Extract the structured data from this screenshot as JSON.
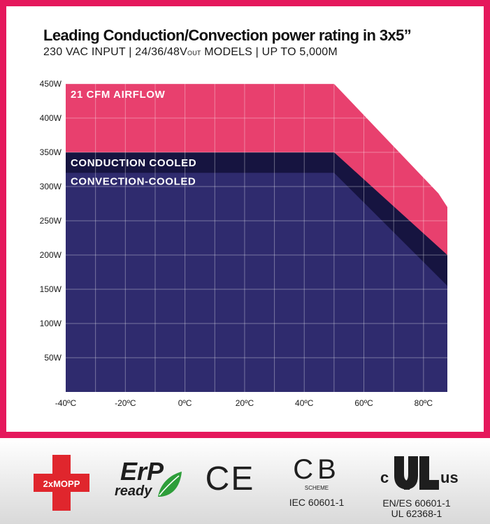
{
  "colors": {
    "frame": "#e5185c",
    "airflow": "#e8406e",
    "conduction": "#161440",
    "convection": "#2f2b6e",
    "grid": "#ffffff"
  },
  "header": {
    "title": "Leading Conduction/Convection power rating in 3x5”",
    "subtitle_pre": "230 VAC INPUT | 24/36/48V",
    "subtitle_sub": "OUT",
    "subtitle_post": " MODELS | UP TO 5,000M"
  },
  "chart_data": {
    "type": "area",
    "title": "Leading Conduction/Convection power rating in 3x5”",
    "xlabel": "",
    "ylabel": "",
    "xlim": [
      -40,
      88
    ],
    "ylim": [
      0,
      450
    ],
    "xticks": [
      -40,
      -20,
      0,
      20,
      40,
      60,
      80
    ],
    "xtick_labels": [
      "-40ºC",
      "-20ºC",
      "0ºC",
      "20ºC",
      "40ºC",
      "60ºC",
      "80ºC"
    ],
    "yticks": [
      50,
      100,
      150,
      200,
      250,
      300,
      350,
      400,
      450
    ],
    "ytick_labels": [
      "50W",
      "100W",
      "150W",
      "200W",
      "250W",
      "300W",
      "350W",
      "400W",
      "450W"
    ],
    "grid": true,
    "series": [
      {
        "name": "21 CFM AIRFLOW",
        "label": "21 CFM AIRFLOW",
        "x": [
          -40,
          50,
          85,
          88
        ],
        "y": [
          450,
          450,
          290,
          270
        ]
      },
      {
        "name": "CONDUCTION COOLED",
        "label": "CONDUCTION COOLED",
        "x": [
          -40,
          50,
          88
        ],
        "y": [
          350,
          350,
          200
        ]
      },
      {
        "name": "CONVECTION-COOLED",
        "label": "CONVECTION-COOLED",
        "x": [
          -40,
          50,
          88
        ],
        "y": [
          320,
          320,
          155
        ]
      }
    ]
  },
  "certifications": {
    "mopp": "2xMOPP",
    "erp_main": "ErP",
    "erp_sub": "ready",
    "ce": "CE",
    "cb": "CB",
    "cb_scheme": "SCHEME",
    "cb_standard": "IEC 60601-1",
    "ul_c": "c",
    "ul_us": "us",
    "ul_standard_1": "EN/ES 60601-1",
    "ul_standard_2": "UL 62368-1"
  }
}
